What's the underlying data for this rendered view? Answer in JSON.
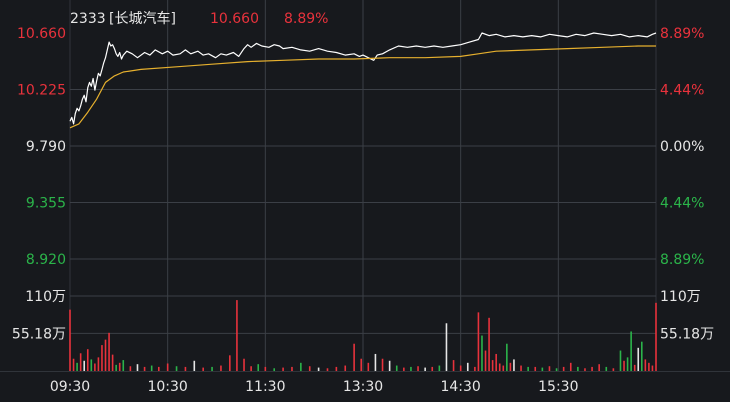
{
  "header": {
    "code": "2333",
    "name": "[长城汽车]",
    "price": "10.660",
    "change_pct": "8.89%"
  },
  "colors": {
    "background": "#17191d",
    "grid": "#3b3f46",
    "frame": "#30343a",
    "up": "#e8323c",
    "down": "#2bb44a",
    "neutral": "#e6e6e6",
    "price_line": "#ffffff",
    "avg_line": "#e6b02e"
  },
  "chart_data": {
    "type": "line",
    "title": "2333[长城汽车]",
    "price_axis": {
      "ylim": [
        8.92,
        10.66
      ],
      "ticks": [
        {
          "value": 10.66,
          "label": "10.660",
          "pct": "8.89%",
          "tone": "up"
        },
        {
          "value": 10.225,
          "label": "10.225",
          "pct": "4.44%",
          "tone": "up"
        },
        {
          "value": 9.79,
          "label": "9.790",
          "pct": "0.00%",
          "tone": "neutral"
        },
        {
          "value": 9.355,
          "label": "9.355",
          "pct": "4.44%",
          "tone": "down"
        },
        {
          "value": 8.92,
          "label": "8.920",
          "pct": "8.89%",
          "tone": "down"
        }
      ],
      "prev_close": 9.79
    },
    "volume_axis": {
      "ylim": [
        0,
        1100000
      ],
      "ticks": [
        {
          "value": 1100000,
          "label": "110万"
        },
        {
          "value": 551800,
          "label": "55.18万"
        }
      ]
    },
    "time_ticks": [
      "09:30",
      "10:30",
      "11:30",
      "13:30",
      "14:30",
      "15:30"
    ],
    "session_minutes": 330,
    "series": [
      {
        "key": "price",
        "points": [
          [
            0,
            9.98
          ],
          [
            1,
            10.01
          ],
          [
            2,
            9.96
          ],
          [
            3,
            10.04
          ],
          [
            4,
            10.08
          ],
          [
            5,
            10.06
          ],
          [
            6,
            10.1
          ],
          [
            7,
            10.15
          ],
          [
            8,
            10.18
          ],
          [
            9,
            10.13
          ],
          [
            10,
            10.24
          ],
          [
            11,
            10.28
          ],
          [
            12,
            10.25
          ],
          [
            13,
            10.31
          ],
          [
            14,
            10.22
          ],
          [
            15,
            10.29
          ],
          [
            16,
            10.35
          ],
          [
            17,
            10.33
          ],
          [
            18,
            10.38
          ],
          [
            19,
            10.43
          ],
          [
            20,
            10.47
          ],
          [
            21,
            10.53
          ],
          [
            22,
            10.59
          ],
          [
            23,
            10.56
          ],
          [
            24,
            10.57
          ],
          [
            25,
            10.54
          ],
          [
            26,
            10.5
          ],
          [
            27,
            10.48
          ],
          [
            28,
            10.51
          ],
          [
            29,
            10.46
          ],
          [
            30,
            10.49
          ],
          [
            32,
            10.52
          ],
          [
            35,
            10.5
          ],
          [
            38,
            10.47
          ],
          [
            42,
            10.51
          ],
          [
            45,
            10.49
          ],
          [
            48,
            10.53
          ],
          [
            52,
            10.5
          ],
          [
            55,
            10.52
          ],
          [
            58,
            10.49
          ],
          [
            62,
            10.5
          ],
          [
            65,
            10.53
          ],
          [
            68,
            10.5
          ],
          [
            72,
            10.52
          ],
          [
            75,
            10.49
          ],
          [
            78,
            10.5
          ],
          [
            82,
            10.47
          ],
          [
            85,
            10.5
          ],
          [
            88,
            10.49
          ],
          [
            92,
            10.51
          ],
          [
            95,
            10.48
          ],
          [
            98,
            10.54
          ],
          [
            100,
            10.57
          ],
          [
            102,
            10.55
          ],
          [
            105,
            10.58
          ],
          [
            108,
            10.56
          ],
          [
            112,
            10.55
          ],
          [
            115,
            10.57
          ],
          [
            118,
            10.56
          ],
          [
            120,
            10.54
          ],
          [
            125,
            10.55
          ],
          [
            130,
            10.53
          ],
          [
            135,
            10.52
          ],
          [
            140,
            10.54
          ],
          [
            145,
            10.52
          ],
          [
            150,
            10.51
          ],
          [
            155,
            10.49
          ],
          [
            160,
            10.5
          ],
          [
            163,
            10.48
          ],
          [
            165,
            10.49
          ],
          [
            168,
            10.47
          ],
          [
            171,
            10.45
          ],
          [
            173,
            10.49
          ],
          [
            176,
            10.5
          ],
          [
            180,
            10.53
          ],
          [
            185,
            10.56
          ],
          [
            190,
            10.55
          ],
          [
            195,
            10.56
          ],
          [
            200,
            10.55
          ],
          [
            205,
            10.56
          ],
          [
            210,
            10.55
          ],
          [
            215,
            10.56
          ],
          [
            220,
            10.57
          ],
          [
            225,
            10.59
          ],
          [
            230,
            10.61
          ],
          [
            232,
            10.66
          ],
          [
            236,
            10.64
          ],
          [
            240,
            10.65
          ],
          [
            245,
            10.63
          ],
          [
            250,
            10.64
          ],
          [
            255,
            10.63
          ],
          [
            260,
            10.64
          ],
          [
            265,
            10.63
          ],
          [
            270,
            10.65
          ],
          [
            275,
            10.64
          ],
          [
            280,
            10.63
          ],
          [
            285,
            10.65
          ],
          [
            290,
            10.64
          ],
          [
            295,
            10.66
          ],
          [
            300,
            10.65
          ],
          [
            305,
            10.64
          ],
          [
            310,
            10.65
          ],
          [
            315,
            10.63
          ],
          [
            320,
            10.64
          ],
          [
            325,
            10.63
          ],
          [
            328,
            10.65
          ],
          [
            330,
            10.66
          ]
        ]
      },
      {
        "key": "average",
        "points": [
          [
            0,
            9.93
          ],
          [
            5,
            9.96
          ],
          [
            10,
            10.05
          ],
          [
            15,
            10.15
          ],
          [
            20,
            10.28
          ],
          [
            25,
            10.33
          ],
          [
            30,
            10.36
          ],
          [
            40,
            10.38
          ],
          [
            60,
            10.4
          ],
          [
            80,
            10.42
          ],
          [
            100,
            10.44
          ],
          [
            120,
            10.45
          ],
          [
            140,
            10.46
          ],
          [
            160,
            10.46
          ],
          [
            180,
            10.47
          ],
          [
            200,
            10.47
          ],
          [
            220,
            10.48
          ],
          [
            230,
            10.5
          ],
          [
            240,
            10.52
          ],
          [
            260,
            10.53
          ],
          [
            280,
            10.54
          ],
          [
            300,
            10.55
          ],
          [
            320,
            10.56
          ],
          [
            330,
            10.56
          ]
        ]
      }
    ],
    "volume": [
      [
        0,
        900000,
        "up"
      ],
      [
        2,
        180000,
        "up"
      ],
      [
        4,
        120000,
        "down"
      ],
      [
        6,
        260000,
        "up"
      ],
      [
        8,
        150000,
        "neutral"
      ],
      [
        10,
        320000,
        "up"
      ],
      [
        12,
        170000,
        "down"
      ],
      [
        14,
        110000,
        "up"
      ],
      [
        16,
        200000,
        "up"
      ],
      [
        18,
        380000,
        "up"
      ],
      [
        20,
        460000,
        "up"
      ],
      [
        22,
        560000,
        "up"
      ],
      [
        24,
        240000,
        "up"
      ],
      [
        26,
        90000,
        "down"
      ],
      [
        28,
        120000,
        "up"
      ],
      [
        30,
        160000,
        "down"
      ],
      [
        34,
        70000,
        "up"
      ],
      [
        38,
        100000,
        "neutral"
      ],
      [
        42,
        60000,
        "up"
      ],
      [
        46,
        80000,
        "down"
      ],
      [
        50,
        60000,
        "up"
      ],
      [
        55,
        110000,
        "up"
      ],
      [
        60,
        70000,
        "down"
      ],
      [
        65,
        60000,
        "up"
      ],
      [
        70,
        150000,
        "neutral"
      ],
      [
        75,
        50000,
        "up"
      ],
      [
        80,
        60000,
        "down"
      ],
      [
        85,
        80000,
        "up"
      ],
      [
        90,
        230000,
        "up"
      ],
      [
        94,
        1040000,
        "up"
      ],
      [
        98,
        180000,
        "up"
      ],
      [
        102,
        70000,
        "up"
      ],
      [
        106,
        100000,
        "down"
      ],
      [
        110,
        60000,
        "up"
      ],
      [
        115,
        40000,
        "down"
      ],
      [
        120,
        50000,
        "up"
      ],
      [
        125,
        60000,
        "up"
      ],
      [
        130,
        120000,
        "down"
      ],
      [
        135,
        70000,
        "up"
      ],
      [
        140,
        50000,
        "neutral"
      ],
      [
        145,
        40000,
        "up"
      ],
      [
        150,
        60000,
        "up"
      ],
      [
        155,
        80000,
        "up"
      ],
      [
        160,
        400000,
        "up"
      ],
      [
        164,
        180000,
        "up"
      ],
      [
        168,
        120000,
        "up"
      ],
      [
        172,
        250000,
        "neutral"
      ],
      [
        176,
        180000,
        "up"
      ],
      [
        180,
        150000,
        "neutral"
      ],
      [
        184,
        80000,
        "down"
      ],
      [
        188,
        50000,
        "up"
      ],
      [
        192,
        60000,
        "down"
      ],
      [
        196,
        70000,
        "up"
      ],
      [
        200,
        50000,
        "neutral"
      ],
      [
        204,
        60000,
        "up"
      ],
      [
        208,
        80000,
        "down"
      ],
      [
        212,
        700000,
        "neutral"
      ],
      [
        216,
        160000,
        "up"
      ],
      [
        220,
        80000,
        "up"
      ],
      [
        224,
        120000,
        "neutral"
      ],
      [
        228,
        60000,
        "up"
      ],
      [
        230,
        860000,
        "up"
      ],
      [
        232,
        520000,
        "down"
      ],
      [
        234,
        300000,
        "up"
      ],
      [
        236,
        780000,
        "up"
      ],
      [
        238,
        160000,
        "up"
      ],
      [
        240,
        250000,
        "up"
      ],
      [
        242,
        110000,
        "up"
      ],
      [
        244,
        80000,
        "up"
      ],
      [
        246,
        400000,
        "down"
      ],
      [
        248,
        120000,
        "up"
      ],
      [
        250,
        170000,
        "neutral"
      ],
      [
        254,
        80000,
        "up"
      ],
      [
        258,
        60000,
        "down"
      ],
      [
        262,
        60000,
        "up"
      ],
      [
        266,
        50000,
        "down"
      ],
      [
        270,
        70000,
        "up"
      ],
      [
        274,
        40000,
        "down"
      ],
      [
        278,
        60000,
        "up"
      ],
      [
        282,
        120000,
        "up"
      ],
      [
        286,
        60000,
        "down"
      ],
      [
        290,
        40000,
        "up"
      ],
      [
        294,
        60000,
        "up"
      ],
      [
        298,
        100000,
        "up"
      ],
      [
        302,
        60000,
        "down"
      ],
      [
        306,
        40000,
        "up"
      ],
      [
        310,
        300000,
        "down"
      ],
      [
        312,
        150000,
        "up"
      ],
      [
        314,
        200000,
        "down"
      ],
      [
        316,
        580000,
        "down"
      ],
      [
        318,
        90000,
        "up"
      ],
      [
        320,
        340000,
        "neutral"
      ],
      [
        322,
        430000,
        "down"
      ],
      [
        324,
        170000,
        "up"
      ],
      [
        326,
        120000,
        "up"
      ],
      [
        328,
        80000,
        "up"
      ],
      [
        330,
        1000000,
        "up"
      ]
    ]
  }
}
